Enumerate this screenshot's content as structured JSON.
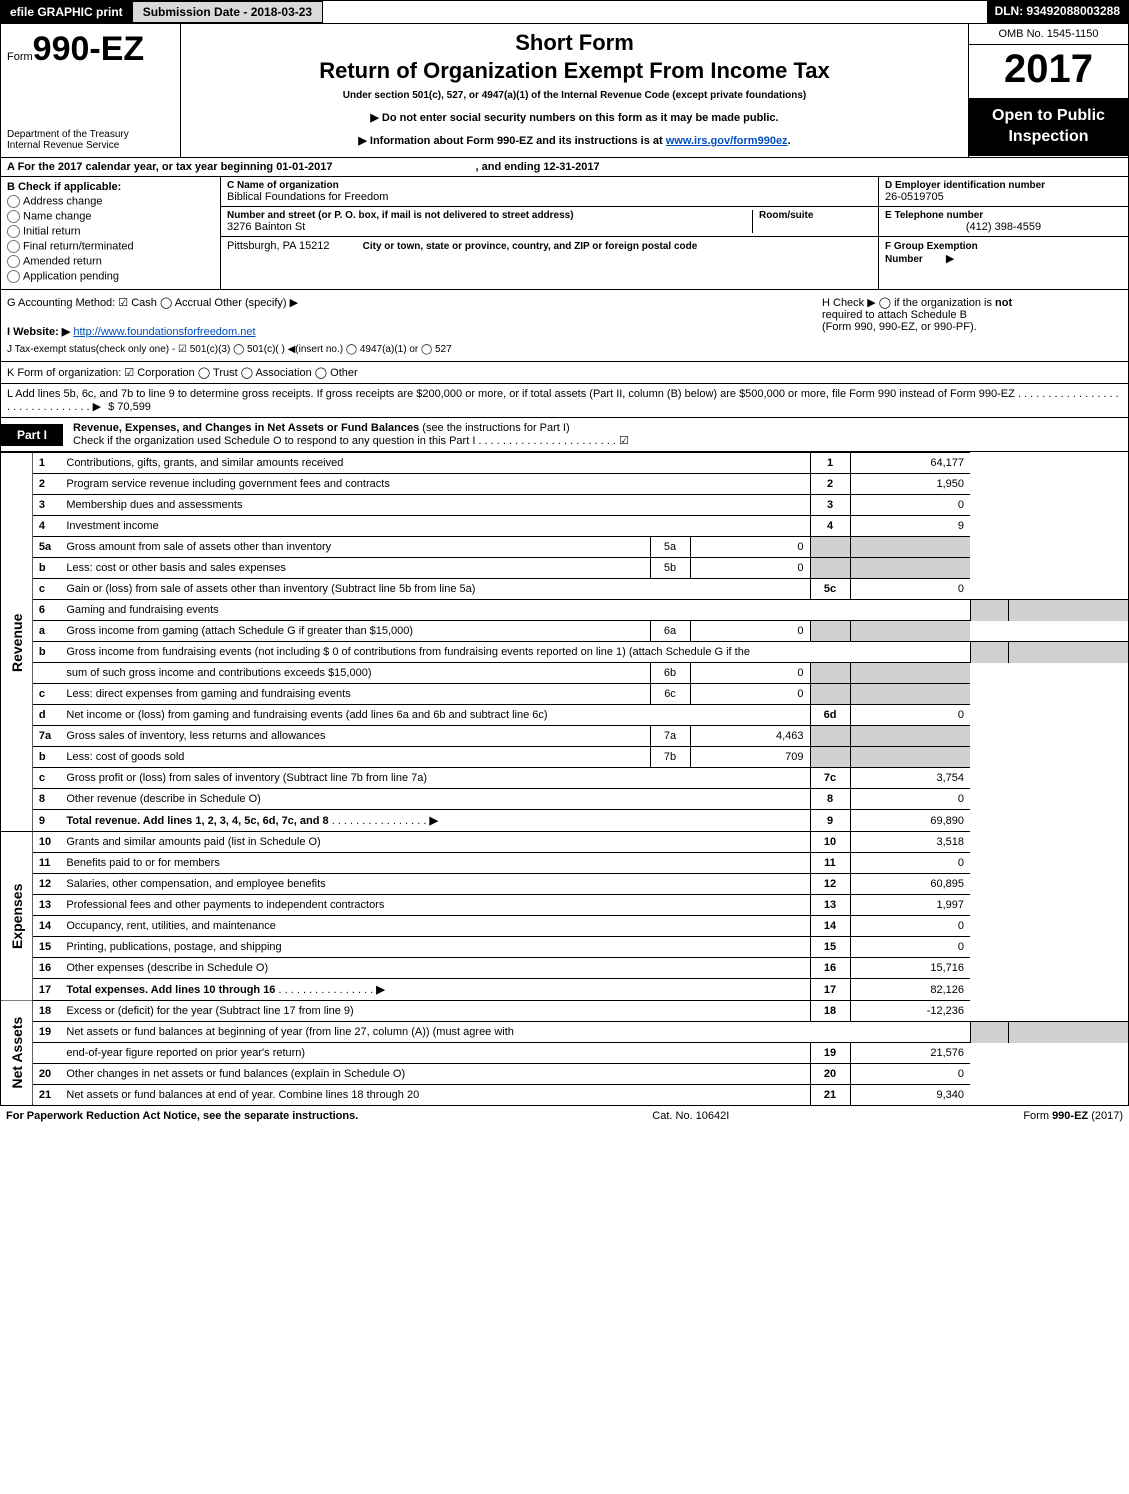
{
  "top": {
    "efile": "efile GRAPHIC print",
    "subdate_lbl": "Submission Date - 2018-03-23",
    "dln": "DLN: 93492088003288"
  },
  "head": {
    "form_prefix": "Form",
    "form_no": "990-EZ",
    "dept1": "Department of the Treasury",
    "dept2": "Internal Revenue Service",
    "short_form": "Short Form",
    "title": "Return of Organization Exempt From Income Tax",
    "under": "Under section 501(c), 527, or 4947(a)(1) of the Internal Revenue Code (except private foundations)",
    "arrow1": "▶ Do not enter social security numbers on this form as it may be made public.",
    "arrow2_pre": "▶ Information about Form 990-EZ and its instructions is at ",
    "arrow2_link": "www.irs.gov/form990ez",
    "arrow2_post": ".",
    "omb": "OMB No. 1545-1150",
    "year": "2017",
    "open1": "Open to Public",
    "open2": "Inspection"
  },
  "A": {
    "text": "A  For the 2017 calendar year, or tax year beginning 01-01-2017",
    "end": ", and ending 12-31-2017"
  },
  "B": {
    "label": "B  Check if applicable:",
    "opts": [
      "Address change",
      "Name change",
      "Initial return",
      "Final return/terminated",
      "Amended return",
      "Application pending"
    ]
  },
  "C": {
    "lbl": "C Name of organization",
    "name": "Biblical Foundations for Freedom",
    "street_lbl": "Number and street (or P. O. box, if mail is not delivered to street address)",
    "room_lbl": "Room/suite",
    "street": "3276 Bainton St",
    "city_lbl": "City or town, state or province, country, and ZIP or foreign postal code",
    "city": "Pittsburgh, PA  15212"
  },
  "D": {
    "lbl": "D Employer identification number",
    "val": "26-0519705"
  },
  "E": {
    "lbl": "E Telephone number",
    "val": "(412) 398-4559"
  },
  "F": {
    "lbl": "F Group Exemption",
    "lbl2": "Number",
    "arrow": "▶"
  },
  "G": {
    "text": "G Accounting Method:  ☑ Cash   ◯ Accrual   Other (specify) ▶"
  },
  "H": {
    "text_pre": "H   Check ▶  ◯  if the organization is ",
    "text_not": "not",
    "line2": "required to attach Schedule B",
    "line3": "(Form 990, 990-EZ, or 990-PF)."
  },
  "I": {
    "lbl": "I Website: ▶",
    "url": "http://www.foundationsforfreedom.net"
  },
  "J": {
    "text": "J Tax-exempt status(check only one) -  ☑ 501(c)(3)  ◯ 501(c)(  ) ◀(insert no.)  ◯ 4947(a)(1) or  ◯ 527"
  },
  "K": {
    "text": "K Form of organization:  ☑ Corporation   ◯ Trust   ◯ Association   ◯ Other"
  },
  "L": {
    "text": "L Add lines 5b, 6c, and 7b to line 9 to determine gross receipts. If gross receipts are $200,000 or more, or if total assets (Part II, column (B) below) are $500,000 or more, file Form 990 instead of Form 990-EZ  . . . . . . . . . . . . . . . . . . . . . . . . . . . . . . .  ▶",
    "val": "$ 70,599"
  },
  "partI": {
    "tag": "Part I",
    "title": "Revenue, Expenses, and Changes in Net Assets or Fund Balances",
    "sub": " (see the instructions for Part I)",
    "check_line": "Check if the organization used Schedule O to respond to any question in this Part I . . . . . . . . . . . . . . . . . . . . . . . ☑"
  },
  "sections": {
    "revenue": "Revenue",
    "expenses": "Expenses",
    "netassets": "Net Assets"
  },
  "lines": [
    {
      "group": "rev",
      "n": "1",
      "desc": "Contributions, gifts, grants, and similar amounts received",
      "ln": "1",
      "val": "64,177"
    },
    {
      "group": "rev",
      "n": "2",
      "desc": "Program service revenue including government fees and contracts",
      "ln": "2",
      "val": "1,950"
    },
    {
      "group": "rev",
      "n": "3",
      "desc": "Membership dues and assessments",
      "ln": "3",
      "val": "0"
    },
    {
      "group": "rev",
      "n": "4",
      "desc": "Investment income",
      "ln": "4",
      "val": "9"
    },
    {
      "group": "rev",
      "n": "5a",
      "desc": "Gross amount from sale of assets other than inventory",
      "sn": "5a",
      "sv": "0",
      "shade_right": true
    },
    {
      "group": "rev",
      "n": "b",
      "desc": "Less: cost or other basis and sales expenses",
      "sn": "5b",
      "sv": "0",
      "shade_right": true
    },
    {
      "group": "rev",
      "n": "c",
      "desc": "Gain or (loss) from sale of assets other than inventory (Subtract line 5b from line 5a)",
      "ln": "5c",
      "val": "0"
    },
    {
      "group": "rev",
      "n": "6",
      "desc": "Gaming and fundraising events",
      "shade_right": true,
      "no_sub": true
    },
    {
      "group": "rev",
      "n": "a",
      "desc": "Gross income from gaming (attach Schedule G if greater than $15,000)",
      "sn": "6a",
      "sv": "0",
      "shade_right": true
    },
    {
      "group": "rev",
      "n": "b",
      "desc": "Gross income from fundraising events (not including $  0               of contributions from fundraising events reported on line 1) (attach Schedule G if the",
      "shade_right": true,
      "no_sub": true
    },
    {
      "group": "rev",
      "n": "",
      "desc": "sum of such gross income and contributions exceeds $15,000)",
      "sn": "6b",
      "sv": "0",
      "shade_right": true
    },
    {
      "group": "rev",
      "n": "c",
      "desc": "Less: direct expenses from gaming and fundraising events",
      "sn": "6c",
      "sv": "0",
      "shade_right": true
    },
    {
      "group": "rev",
      "n": "d",
      "desc": "Net income or (loss) from gaming and fundraising events (add lines 6a and 6b and subtract line 6c)",
      "ln": "6d",
      "val": "0"
    },
    {
      "group": "rev",
      "n": "7a",
      "desc": "Gross sales of inventory, less returns and allowances",
      "sn": "7a",
      "sv": "4,463",
      "shade_right": true
    },
    {
      "group": "rev",
      "n": "b",
      "desc": "Less: cost of goods sold",
      "sn": "7b",
      "sv": "709",
      "shade_right": true
    },
    {
      "group": "rev",
      "n": "c",
      "desc": "Gross profit or (loss) from sales of inventory (Subtract line 7b from line 7a)",
      "ln": "7c",
      "val": "3,754"
    },
    {
      "group": "rev",
      "n": "8",
      "desc": "Other revenue (describe in Schedule O)",
      "ln": "8",
      "val": "0"
    },
    {
      "group": "rev",
      "n": "9",
      "desc": "Total revenue. Add lines 1, 2, 3, 4, 5c, 6d, 7c, and 8",
      "ln": "9",
      "val": "69,890",
      "bold": true,
      "arrow": true
    },
    {
      "group": "exp",
      "n": "10",
      "desc": "Grants and similar amounts paid (list in Schedule O)",
      "ln": "10",
      "val": "3,518"
    },
    {
      "group": "exp",
      "n": "11",
      "desc": "Benefits paid to or for members",
      "ln": "11",
      "val": "0"
    },
    {
      "group": "exp",
      "n": "12",
      "desc": "Salaries, other compensation, and employee benefits",
      "ln": "12",
      "val": "60,895"
    },
    {
      "group": "exp",
      "n": "13",
      "desc": "Professional fees and other payments to independent contractors",
      "ln": "13",
      "val": "1,997"
    },
    {
      "group": "exp",
      "n": "14",
      "desc": "Occupancy, rent, utilities, and maintenance",
      "ln": "14",
      "val": "0"
    },
    {
      "group": "exp",
      "n": "15",
      "desc": "Printing, publications, postage, and shipping",
      "ln": "15",
      "val": "0"
    },
    {
      "group": "exp",
      "n": "16",
      "desc": "Other expenses (describe in Schedule O)",
      "ln": "16",
      "val": "15,716"
    },
    {
      "group": "exp",
      "n": "17",
      "desc": "Total expenses. Add lines 10 through 16",
      "ln": "17",
      "val": "82,126",
      "bold": true,
      "arrow": true
    },
    {
      "group": "net",
      "n": "18",
      "desc": "Excess or (deficit) for the year (Subtract line 17 from line 9)",
      "ln": "18",
      "val": "-12,236"
    },
    {
      "group": "net",
      "n": "19",
      "desc": "Net assets or fund balances at beginning of year (from line 27, column (A)) (must agree with",
      "shade_right": true,
      "no_sub": true
    },
    {
      "group": "net",
      "n": "",
      "desc": "end-of-year figure reported on prior year's return)",
      "ln": "19",
      "val": "21,576"
    },
    {
      "group": "net",
      "n": "20",
      "desc": "Other changes in net assets or fund balances (explain in Schedule O)",
      "ln": "20",
      "val": "0"
    },
    {
      "group": "net",
      "n": "21",
      "desc": "Net assets or fund balances at end of year. Combine lines 18 through 20",
      "ln": "21",
      "val": "9,340"
    }
  ],
  "footer": {
    "left": "For Paperwork Reduction Act Notice, see the separate instructions.",
    "mid": "Cat. No. 10642I",
    "right_pre": "Form ",
    "right_form": "990-EZ",
    "right_post": " (2017)"
  }
}
